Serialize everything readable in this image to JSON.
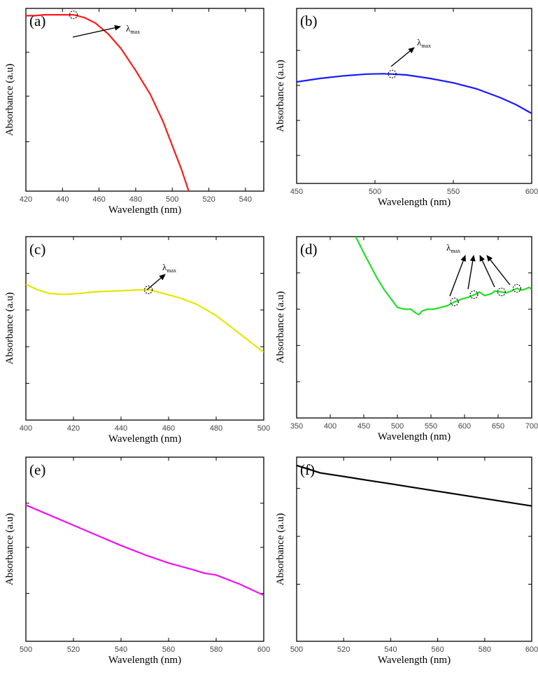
{
  "chart_data": [
    {
      "type": "line",
      "panel_label": "(a)",
      "xlabel": "Wavelength (nm)",
      "ylabel": "Absorbance (a.u)",
      "xlim": [
        420,
        550
      ],
      "xticks": [
        420,
        440,
        460,
        480,
        500,
        520,
        540
      ],
      "ylim": [
        0,
        1
      ],
      "yticks": [
        0.27,
        0.52,
        0.76
      ],
      "color": "#ff1a1a",
      "x": [
        420,
        425,
        430,
        440,
        446,
        452,
        458,
        465,
        472,
        480,
        488,
        495,
        500,
        505,
        509
      ],
      "y": [
        0.96,
        0.96,
        0.965,
        0.965,
        0.965,
        0.95,
        0.92,
        0.86,
        0.78,
        0.66,
        0.53,
        0.38,
        0.25,
        0.12,
        0.0
      ],
      "markers": [
        {
          "x": 446,
          "y": 0.965
        }
      ],
      "annotation": {
        "text": "λ",
        "sub": "max"
      }
    },
    {
      "type": "line",
      "panel_label": "(b)",
      "xlabel": "Wavelength (nm)",
      "ylabel": "Absorbance (a.u)",
      "xlim": [
        450,
        600
      ],
      "xticks": [
        450,
        500,
        550,
        600
      ],
      "ylim": [
        0,
        1
      ],
      "yticks": [
        0.16,
        0.36,
        0.56,
        0.76
      ],
      "color": "#1a1aff",
      "x": [
        450,
        465,
        480,
        495,
        505,
        511,
        520,
        535,
        550,
        565,
        580,
        590,
        600
      ],
      "y": [
        0.58,
        0.6,
        0.615,
        0.625,
        0.627,
        0.625,
        0.62,
        0.6,
        0.575,
        0.54,
        0.49,
        0.45,
        0.4
      ],
      "markers": [
        {
          "x": 511,
          "y": 0.625
        }
      ],
      "annotation": {
        "text": "λ",
        "sub": "max"
      }
    },
    {
      "type": "line",
      "panel_label": "(c)",
      "xlabel": "Wavelength (nm)",
      "ylabel": "Absorbance (a.u)",
      "xlim": [
        400,
        500
      ],
      "xticks": [
        400,
        420,
        440,
        460,
        480,
        500
      ],
      "ylim": [
        0,
        1
      ],
      "yticks": [
        0.2,
        0.4,
        0.6,
        0.8
      ],
      "color": "#e6e600",
      "x": [
        400,
        405,
        410,
        416,
        422,
        430,
        440,
        448,
        452,
        458,
        465,
        472,
        480,
        488,
        495,
        500
      ],
      "y": [
        0.74,
        0.71,
        0.69,
        0.685,
        0.69,
        0.7,
        0.705,
        0.71,
        0.71,
        0.69,
        0.665,
        0.63,
        0.57,
        0.49,
        0.42,
        0.37
      ],
      "markers": [
        {
          "x": 451.5,
          "y": 0.71
        }
      ],
      "annotation": {
        "text": "λ",
        "sub": "max"
      }
    },
    {
      "type": "line",
      "panel_label": "(d)",
      "xlabel": "Wavelength (nm)",
      "ylabel": "Absorbance (a.u)",
      "xlim": [
        350,
        700
      ],
      "xticks": [
        350,
        400,
        450,
        500,
        550,
        600,
        650,
        700
      ],
      "ylim": [
        0,
        1
      ],
      "yticks": [
        0.2,
        0.4,
        0.6,
        0.8
      ],
      "color": "#22dd22",
      "x": [
        438,
        450,
        460,
        470,
        480,
        490,
        500,
        510,
        520,
        527,
        532,
        537,
        545,
        555,
        565,
        575,
        585,
        595,
        605,
        615,
        622,
        630,
        640,
        645,
        655,
        662,
        670,
        678,
        684,
        690,
        696,
        700
      ],
      "y": [
        1.0,
        0.91,
        0.84,
        0.77,
        0.71,
        0.66,
        0.61,
        0.6,
        0.6,
        0.58,
        0.57,
        0.59,
        0.6,
        0.6,
        0.61,
        0.62,
        0.64,
        0.655,
        0.665,
        0.68,
        0.695,
        0.675,
        0.685,
        0.7,
        0.695,
        0.69,
        0.7,
        0.715,
        0.705,
        0.71,
        0.72,
        0.71
      ],
      "markers": [
        {
          "x": 585,
          "y": 0.64
        },
        {
          "x": 614,
          "y": 0.68
        },
        {
          "x": 655,
          "y": 0.695
        },
        {
          "x": 678,
          "y": 0.715
        }
      ],
      "annotation": {
        "text": "λ",
        "sub": "max"
      }
    },
    {
      "type": "line",
      "panel_label": "(e)",
      "xlabel": "Wavelength (nm)",
      "ylabel": "Absorbance (a.u)",
      "xlim": [
        500,
        600
      ],
      "xticks": [
        500,
        520,
        540,
        560,
        580,
        600
      ],
      "ylim": [
        0,
        1
      ],
      "yticks": [
        0.26,
        0.51,
        0.75
      ],
      "color": "#ee11ee",
      "x": [
        500,
        510,
        520,
        530,
        540,
        550,
        560,
        570,
        575,
        580,
        590,
        600
      ],
      "y": [
        0.74,
        0.685,
        0.63,
        0.575,
        0.52,
        0.47,
        0.425,
        0.39,
        0.37,
        0.36,
        0.31,
        0.25
      ],
      "markers": [],
      "annotation": null
    },
    {
      "type": "line",
      "panel_label": "(f)",
      "xlabel": "Wavelength (nm)",
      "ylabel": "Absorbance (a.u)",
      "xlim": [
        500,
        600
      ],
      "xticks": [
        500,
        520,
        540,
        560,
        580,
        600
      ],
      "ylim": [
        0,
        1
      ],
      "yticks": [
        0.31,
        0.57,
        0.83
      ],
      "color": "#000000",
      "x": [
        500,
        505,
        510,
        520,
        530,
        540,
        550,
        560,
        570,
        580,
        590,
        600
      ],
      "y": [
        0.955,
        0.935,
        0.915,
        0.895,
        0.875,
        0.855,
        0.835,
        0.815,
        0.795,
        0.775,
        0.755,
        0.735
      ],
      "markers": [],
      "annotation": null
    }
  ]
}
